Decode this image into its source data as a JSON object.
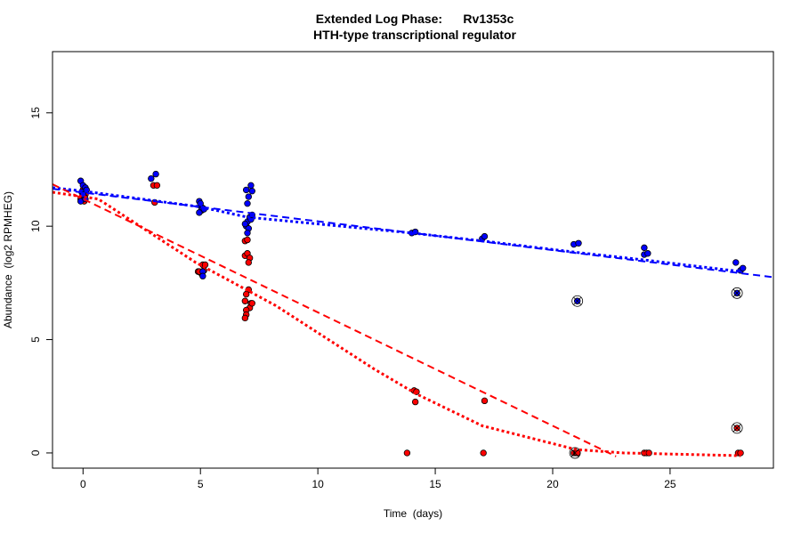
{
  "chart_data": {
    "type": "scatter",
    "title": "Extended Log Phase:      Rv1353c",
    "subtitle": "HTH-type transcriptional regulator",
    "xlabel": "Time  (days)",
    "ylabel": "Abundance  (log2 RPMHEG)",
    "xlim": [
      -1.3,
      29.4
    ],
    "ylim": [
      -0.67,
      17.7
    ],
    "xticks": [
      0,
      5,
      10,
      15,
      20,
      25
    ],
    "yticks": [
      0,
      5,
      10,
      15
    ],
    "grid": false,
    "colors": {
      "blue": "#0000ff",
      "red": "#ff0000"
    },
    "series": [
      {
        "color": "#0000ff",
        "points": [
          [
            -0.1,
            12.0
          ],
          [
            0,
            11.8
          ],
          [
            0.1,
            11.7
          ],
          [
            -0.05,
            11.5
          ],
          [
            0.05,
            11.3
          ],
          [
            0.15,
            11.6
          ],
          [
            -0.1,
            11.1
          ],
          [
            0.1,
            11.2
          ],
          [
            0,
            11.4
          ],
          [
            2.9,
            12.1
          ],
          [
            3.1,
            12.3
          ],
          [
            4.95,
            11.1
          ],
          [
            5.0,
            10.9
          ],
          [
            5.1,
            10.8
          ],
          [
            5.05,
            10.7
          ],
          [
            4.95,
            10.6
          ],
          [
            5.15,
            10.75
          ],
          [
            5.0,
            11.0
          ],
          [
            5.1,
            8.0
          ],
          [
            5.1,
            7.8
          ],
          [
            6.95,
            11.6
          ],
          [
            7.15,
            11.8
          ],
          [
            7.2,
            11.55
          ],
          [
            7.05,
            11.3
          ],
          [
            7.0,
            11.0
          ],
          [
            7.0,
            10.2
          ],
          [
            7.1,
            10.4
          ],
          [
            6.95,
            10.0
          ],
          [
            7.05,
            9.9
          ],
          [
            7.15,
            10.3
          ],
          [
            7.0,
            9.7
          ],
          [
            7.2,
            10.5
          ],
          [
            6.9,
            10.1
          ],
          [
            14.0,
            9.7
          ],
          [
            14.15,
            9.75
          ],
          [
            17.0,
            9.45
          ],
          [
            17.1,
            9.55
          ],
          [
            20.9,
            9.2
          ],
          [
            21.1,
            9.25
          ],
          [
            21.05,
            6.7
          ],
          [
            23.9,
            9.05
          ],
          [
            23.9,
            8.75
          ],
          [
            24.05,
            8.8
          ],
          [
            27.8,
            8.4
          ],
          [
            28.0,
            8.05
          ],
          [
            28.1,
            8.15
          ],
          [
            27.85,
            7.05
          ]
        ],
        "outliers": [
          [
            21.05,
            6.7
          ],
          [
            27.85,
            7.05
          ]
        ],
        "linear_fit": [
          [
            -1.3,
            11.65
          ],
          [
            29.4,
            7.75
          ]
        ],
        "loess_fit": [
          [
            -1.3,
            11.7
          ],
          [
            0,
            11.55
          ],
          [
            5,
            10.85
          ],
          [
            7,
            10.4
          ],
          [
            14,
            9.7
          ],
          [
            17,
            9.35
          ],
          [
            21,
            8.85
          ],
          [
            24,
            8.5
          ],
          [
            28,
            8.0
          ]
        ]
      },
      {
        "color": "#ff0000",
        "points": [
          [
            0,
            11.6
          ],
          [
            0.1,
            11.4
          ],
          [
            -0.1,
            11.2
          ],
          [
            0.05,
            11.1
          ],
          [
            0.1,
            11.6
          ],
          [
            3.0,
            11.8
          ],
          [
            3.15,
            11.8
          ],
          [
            3.05,
            11.05
          ],
          [
            4.9,
            8.0
          ],
          [
            5.05,
            7.9
          ],
          [
            5.1,
            8.3
          ],
          [
            5.2,
            8.3
          ],
          [
            4.95,
            8.0
          ],
          [
            5.15,
            8.05
          ],
          [
            6.9,
            9.35
          ],
          [
            7.0,
            9.4
          ],
          [
            6.9,
            8.7
          ],
          [
            7.0,
            8.8
          ],
          [
            7.1,
            8.6
          ],
          [
            7.05,
            8.4
          ],
          [
            7.05,
            7.2
          ],
          [
            6.95,
            7.0
          ],
          [
            6.9,
            6.7
          ],
          [
            7.15,
            6.6
          ],
          [
            7.1,
            6.4
          ],
          [
            6.95,
            6.3
          ],
          [
            6.95,
            6.1
          ],
          [
            6.9,
            5.95
          ],
          [
            7.2,
            6.6
          ],
          [
            13.8,
            0
          ],
          [
            14.1,
            2.75
          ],
          [
            14.2,
            2.7
          ],
          [
            14.15,
            2.25
          ],
          [
            17.1,
            2.3
          ],
          [
            17.05,
            0
          ],
          [
            20.9,
            0
          ],
          [
            21.0,
            0
          ],
          [
            21.05,
            0
          ],
          [
            23.9,
            0
          ],
          [
            24.0,
            0
          ],
          [
            24.1,
            0
          ],
          [
            27.85,
            1.1
          ],
          [
            27.9,
            0
          ],
          [
            28.0,
            0
          ]
        ],
        "outliers": [
          [
            20.95,
            0
          ],
          [
            27.85,
            1.1
          ]
        ],
        "linear_fit": [
          [
            -1.3,
            11.85
          ],
          [
            22.7,
            -0.15
          ]
        ],
        "loess_fit": [
          [
            -1.3,
            11.5
          ],
          [
            0.65,
            11.2
          ],
          [
            4.8,
            8.4
          ],
          [
            8.2,
            6.5
          ],
          [
            12.4,
            3.7
          ],
          [
            14.2,
            2.6
          ],
          [
            17,
            1.2
          ],
          [
            21,
            0.15
          ],
          [
            23,
            0
          ],
          [
            28,
            -0.12
          ]
        ]
      }
    ]
  }
}
